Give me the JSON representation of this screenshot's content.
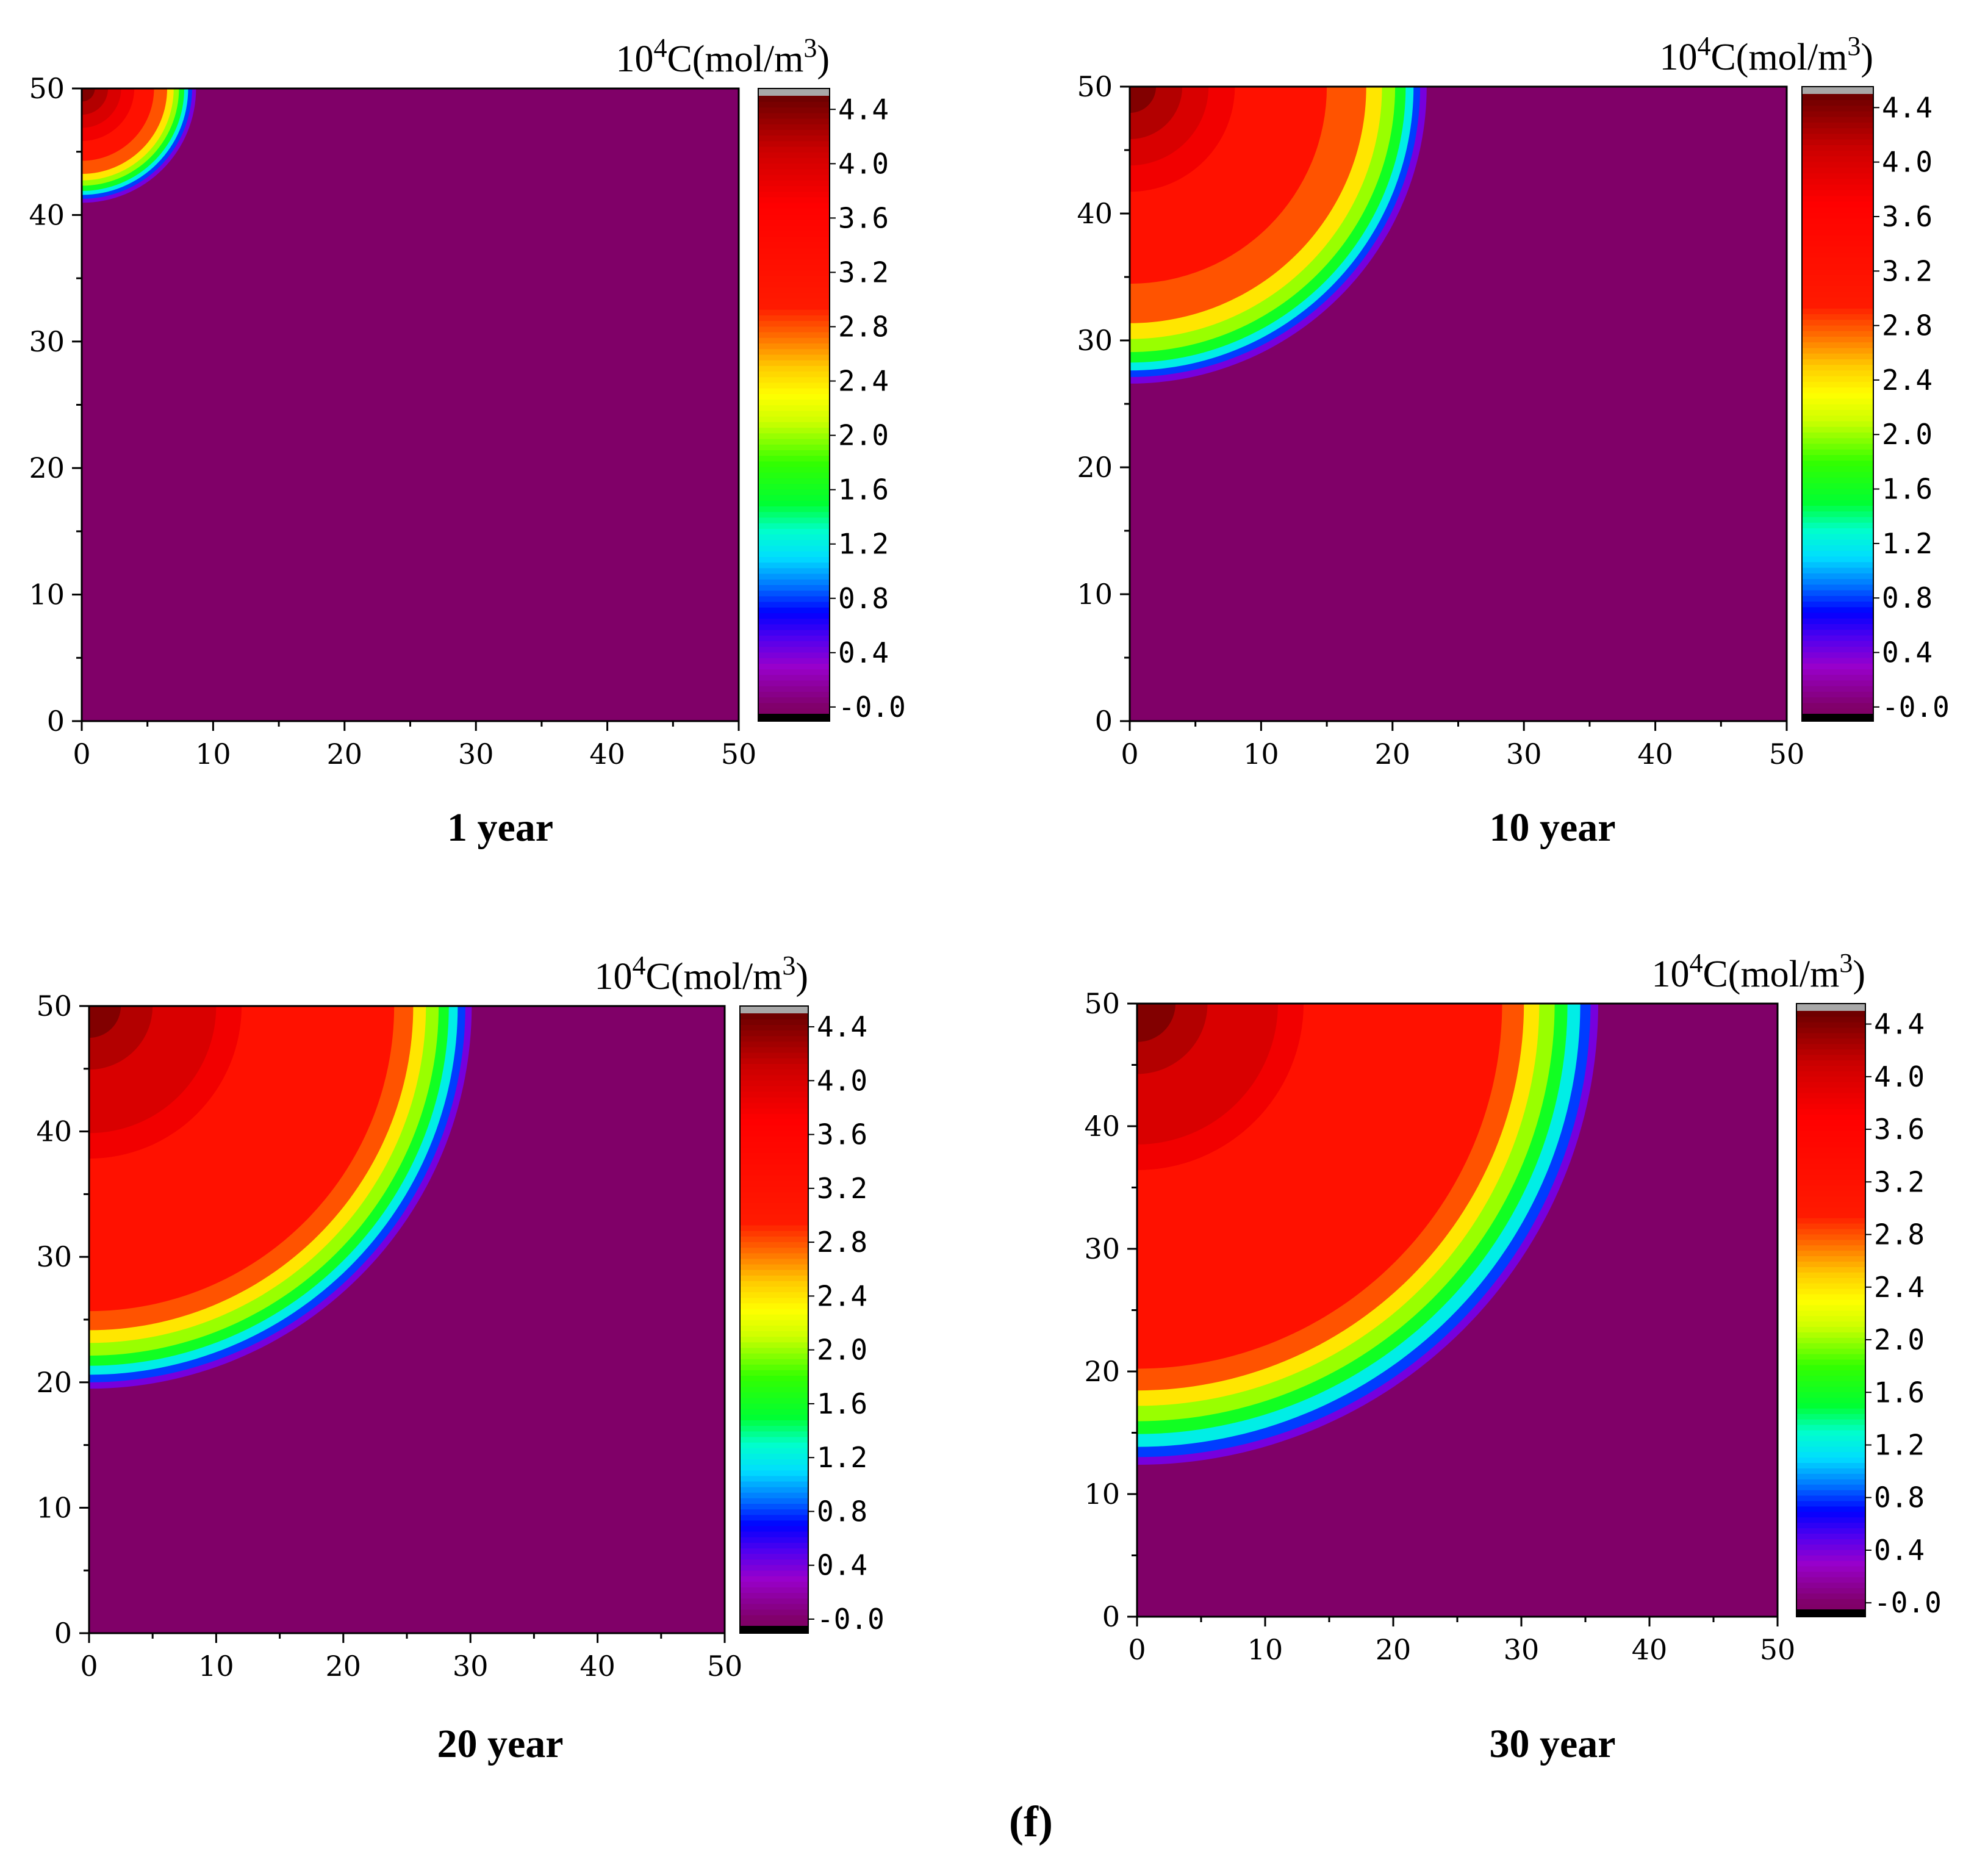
{
  "figure_caption": "(f)",
  "colors": {
    "background": "#800068",
    "axis": "#000000",
    "colorbar_top_cap": "#a8a8a8",
    "colorbar_bottom_cap": "#000000"
  },
  "colorbar": {
    "units_base": "10",
    "units_base_sup": "4",
    "units_mid": "C(mol/m",
    "units_mid_sup": "3",
    "units_end": ")",
    "tick_values": [
      4.4,
      4.0,
      3.6,
      3.2,
      2.8,
      2.4,
      2.0,
      1.6,
      1.2,
      0.8,
      0.4,
      0.0
    ],
    "tick_labels": [
      "4.4",
      "4.0",
      "3.6",
      "3.2",
      "2.8",
      "2.4",
      "2.0",
      "1.6",
      "1.2",
      "0.8",
      "0.4",
      "-0.0"
    ],
    "range": [
      -0.05,
      4.5
    ],
    "color_stops": [
      {
        "v": 0.0,
        "c": "#800068"
      },
      {
        "v": 0.3,
        "c": "#9900cc"
      },
      {
        "v": 0.5,
        "c": "#5500ee"
      },
      {
        "v": 0.7,
        "c": "#0000ff"
      },
      {
        "v": 0.9,
        "c": "#0077ff"
      },
      {
        "v": 1.1,
        "c": "#00ddff"
      },
      {
        "v": 1.3,
        "c": "#00ffcc"
      },
      {
        "v": 1.5,
        "c": "#00ff33"
      },
      {
        "v": 1.8,
        "c": "#33ff00"
      },
      {
        "v": 2.1,
        "c": "#ccff00"
      },
      {
        "v": 2.3,
        "c": "#ffff00"
      },
      {
        "v": 2.5,
        "c": "#ffcc00"
      },
      {
        "v": 2.75,
        "c": "#ff6600"
      },
      {
        "v": 2.95,
        "c": "#ff1a00"
      },
      {
        "v": 3.7,
        "c": "#ff0000"
      },
      {
        "v": 4.1,
        "c": "#cc0000"
      },
      {
        "v": 4.5,
        "c": "#6a0000"
      }
    ]
  },
  "chart_data": [
    {
      "type": "heatmap",
      "title": "1 year",
      "xlabel": "",
      "ylabel": "",
      "xlim": [
        0,
        50
      ],
      "ylim": [
        0,
        50
      ],
      "x_ticks": [
        0,
        10,
        20,
        30,
        40,
        50
      ],
      "y_ticks": [
        0,
        10,
        20,
        30,
        40,
        50
      ],
      "source": [
        0,
        50
      ],
      "contour_radii": [
        {
          "value": 4.4,
          "r": 1.0
        },
        {
          "value": 4.2,
          "r": 2.0
        },
        {
          "value": 4.0,
          "r": 3.0
        },
        {
          "value": 3.8,
          "r": 4.0
        },
        {
          "value": 3.2,
          "r": 5.5
        },
        {
          "value": 2.8,
          "r": 6.5
        },
        {
          "value": 2.4,
          "r": 7.0
        },
        {
          "value": 2.0,
          "r": 7.4
        },
        {
          "value": 1.6,
          "r": 7.8
        },
        {
          "value": 1.2,
          "r": 8.1
        },
        {
          "value": 0.8,
          "r": 8.4
        },
        {
          "value": 0.4,
          "r": 8.7
        },
        {
          "value": 0.0,
          "r": 9.0
        }
      ]
    },
    {
      "type": "heatmap",
      "title": "10 year",
      "xlabel": "",
      "ylabel": "",
      "xlim": [
        0,
        50
      ],
      "ylim": [
        0,
        50
      ],
      "x_ticks": [
        0,
        10,
        20,
        30,
        40,
        50
      ],
      "y_ticks": [
        0,
        10,
        20,
        30,
        40,
        50
      ],
      "source": [
        0,
        50
      ],
      "contour_radii": [
        {
          "value": 4.4,
          "r": 2.0
        },
        {
          "value": 4.2,
          "r": 4.0
        },
        {
          "value": 4.0,
          "r": 6.0
        },
        {
          "value": 3.8,
          "r": 8.0
        },
        {
          "value": 3.2,
          "r": 15.0
        },
        {
          "value": 2.8,
          "r": 18.0
        },
        {
          "value": 2.4,
          "r": 19.2
        },
        {
          "value": 2.0,
          "r": 20.2
        },
        {
          "value": 1.6,
          "r": 21.0
        },
        {
          "value": 1.2,
          "r": 21.6
        },
        {
          "value": 0.8,
          "r": 22.1
        },
        {
          "value": 0.4,
          "r": 22.6
        },
        {
          "value": 0.0,
          "r": 23.0
        }
      ]
    },
    {
      "type": "heatmap",
      "title": "20 year",
      "xlabel": "",
      "ylabel": "",
      "xlim": [
        0,
        50
      ],
      "ylim": [
        0,
        50
      ],
      "x_ticks": [
        0,
        10,
        20,
        30,
        40,
        50
      ],
      "y_ticks": [
        0,
        10,
        20,
        30,
        40,
        50
      ],
      "source": [
        0,
        50
      ],
      "contour_radii": [
        {
          "value": 4.4,
          "r": 2.5
        },
        {
          "value": 4.2,
          "r": 5.0
        },
        {
          "value": 4.0,
          "r": 10.0
        },
        {
          "value": 3.8,
          "r": 12.0
        },
        {
          "value": 3.2,
          "r": 24.0
        },
        {
          "value": 2.8,
          "r": 25.5
        },
        {
          "value": 2.4,
          "r": 26.5
        },
        {
          "value": 2.0,
          "r": 27.5
        },
        {
          "value": 1.6,
          "r": 28.3
        },
        {
          "value": 1.2,
          "r": 29.0
        },
        {
          "value": 0.8,
          "r": 29.6
        },
        {
          "value": 0.4,
          "r": 30.1
        },
        {
          "value": 0.0,
          "r": 30.6
        }
      ]
    },
    {
      "type": "heatmap",
      "title": "30 year",
      "xlabel": "",
      "ylabel": "",
      "xlim": [
        0,
        50
      ],
      "ylim": [
        0,
        50
      ],
      "x_ticks": [
        0,
        10,
        20,
        30,
        40,
        50
      ],
      "y_ticks": [
        0,
        10,
        20,
        30,
        40,
        50
      ],
      "source": [
        0,
        50
      ],
      "contour_radii": [
        {
          "value": 4.4,
          "r": 3.0
        },
        {
          "value": 4.2,
          "r": 5.5
        },
        {
          "value": 4.0,
          "r": 11.0
        },
        {
          "value": 3.8,
          "r": 13.0
        },
        {
          "value": 3.2,
          "r": 28.5
        },
        {
          "value": 2.8,
          "r": 30.2
        },
        {
          "value": 2.4,
          "r": 31.4
        },
        {
          "value": 2.0,
          "r": 32.6
        },
        {
          "value": 1.6,
          "r": 33.6
        },
        {
          "value": 1.2,
          "r": 34.6
        },
        {
          "value": 0.8,
          "r": 35.4
        },
        {
          "value": 0.4,
          "r": 36.0
        },
        {
          "value": 0.0,
          "r": 36.6
        }
      ]
    }
  ]
}
